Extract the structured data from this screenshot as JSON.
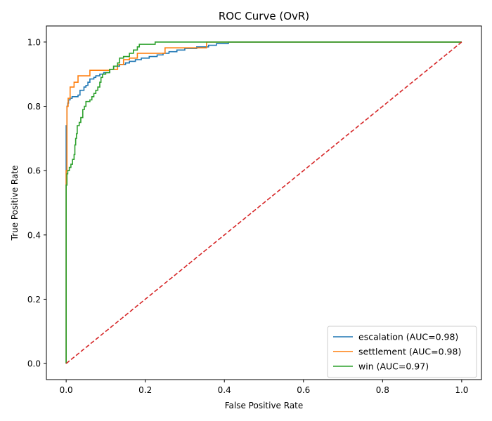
{
  "chart_data": {
    "type": "line",
    "title": "ROC Curve (OvR)",
    "xlabel": "False Positive Rate",
    "ylabel": "True Positive Rate",
    "xlim": [
      -0.05,
      1.05
    ],
    "ylim": [
      -0.05,
      1.05
    ],
    "xticks": [
      0.0,
      0.2,
      0.4,
      0.6,
      0.8,
      1.0
    ],
    "yticks": [
      0.0,
      0.2,
      0.4,
      0.6,
      0.8,
      1.0
    ],
    "grid": false,
    "legend_position": "lower-right",
    "series": [
      {
        "name": "escalation (AUC=0.98)",
        "color": "#1f77b4",
        "points": [
          [
            0,
            0
          ],
          [
            0,
            0.74
          ],
          [
            0.002,
            0.74
          ],
          [
            0.002,
            0.8
          ],
          [
            0.004,
            0.8
          ],
          [
            0.004,
            0.81
          ],
          [
            0.006,
            0.81
          ],
          [
            0.006,
            0.82
          ],
          [
            0.01,
            0.82
          ],
          [
            0.01,
            0.825
          ],
          [
            0.015,
            0.825
          ],
          [
            0.015,
            0.83
          ],
          [
            0.03,
            0.83
          ],
          [
            0.03,
            0.835
          ],
          [
            0.035,
            0.835
          ],
          [
            0.035,
            0.85
          ],
          [
            0.045,
            0.85
          ],
          [
            0.045,
            0.86
          ],
          [
            0.05,
            0.86
          ],
          [
            0.05,
            0.865
          ],
          [
            0.055,
            0.865
          ],
          [
            0.055,
            0.875
          ],
          [
            0.06,
            0.875
          ],
          [
            0.06,
            0.885
          ],
          [
            0.07,
            0.885
          ],
          [
            0.07,
            0.89
          ],
          [
            0.075,
            0.89
          ],
          [
            0.075,
            0.895
          ],
          [
            0.085,
            0.895
          ],
          [
            0.085,
            0.9
          ],
          [
            0.095,
            0.9
          ],
          [
            0.095,
            0.905
          ],
          [
            0.11,
            0.905
          ],
          [
            0.11,
            0.915
          ],
          [
            0.12,
            0.915
          ],
          [
            0.12,
            0.925
          ],
          [
            0.135,
            0.925
          ],
          [
            0.135,
            0.93
          ],
          [
            0.15,
            0.93
          ],
          [
            0.15,
            0.935
          ],
          [
            0.16,
            0.935
          ],
          [
            0.16,
            0.94
          ],
          [
            0.175,
            0.94
          ],
          [
            0.175,
            0.945
          ],
          [
            0.19,
            0.945
          ],
          [
            0.19,
            0.95
          ],
          [
            0.21,
            0.95
          ],
          [
            0.21,
            0.955
          ],
          [
            0.23,
            0.955
          ],
          [
            0.23,
            0.96
          ],
          [
            0.245,
            0.96
          ],
          [
            0.245,
            0.965
          ],
          [
            0.26,
            0.965
          ],
          [
            0.26,
            0.97
          ],
          [
            0.28,
            0.97
          ],
          [
            0.28,
            0.975
          ],
          [
            0.3,
            0.975
          ],
          [
            0.3,
            0.98
          ],
          [
            0.33,
            0.98
          ],
          [
            0.33,
            0.985
          ],
          [
            0.36,
            0.985
          ],
          [
            0.36,
            0.99
          ],
          [
            0.38,
            0.99
          ],
          [
            0.38,
            0.995
          ],
          [
            0.41,
            0.995
          ],
          [
            0.41,
            1.0
          ],
          [
            1.0,
            1.0
          ]
        ]
      },
      {
        "name": "settlement (AUC=0.98)",
        "color": "#ff7f0e",
        "points": [
          [
            0,
            0
          ],
          [
            0,
            0.6
          ],
          [
            0.002,
            0.6
          ],
          [
            0.002,
            0.8
          ],
          [
            0.005,
            0.8
          ],
          [
            0.005,
            0.825
          ],
          [
            0.01,
            0.825
          ],
          [
            0.01,
            0.86
          ],
          [
            0.02,
            0.86
          ],
          [
            0.02,
            0.875
          ],
          [
            0.03,
            0.875
          ],
          [
            0.03,
            0.895
          ],
          [
            0.06,
            0.895
          ],
          [
            0.06,
            0.912
          ],
          [
            0.11,
            0.912
          ],
          [
            0.11,
            0.915
          ],
          [
            0.13,
            0.915
          ],
          [
            0.13,
            0.93
          ],
          [
            0.145,
            0.93
          ],
          [
            0.145,
            0.945
          ],
          [
            0.16,
            0.945
          ],
          [
            0.16,
            0.95
          ],
          [
            0.18,
            0.95
          ],
          [
            0.18,
            0.965
          ],
          [
            0.25,
            0.965
          ],
          [
            0.25,
            0.982
          ],
          [
            0.355,
            0.982
          ],
          [
            0.355,
            1.0
          ],
          [
            1.0,
            1.0
          ]
        ]
      },
      {
        "name": "win (AUC=0.97)",
        "color": "#2ca02c",
        "points": [
          [
            0,
            0
          ],
          [
            0,
            0.555
          ],
          [
            0.002,
            0.555
          ],
          [
            0.002,
            0.59
          ],
          [
            0.004,
            0.59
          ],
          [
            0.004,
            0.6
          ],
          [
            0.008,
            0.6
          ],
          [
            0.008,
            0.61
          ],
          [
            0.012,
            0.61
          ],
          [
            0.012,
            0.62
          ],
          [
            0.016,
            0.62
          ],
          [
            0.016,
            0.635
          ],
          [
            0.02,
            0.635
          ],
          [
            0.02,
            0.65
          ],
          [
            0.022,
            0.65
          ],
          [
            0.022,
            0.68
          ],
          [
            0.024,
            0.68
          ],
          [
            0.024,
            0.7
          ],
          [
            0.026,
            0.7
          ],
          [
            0.026,
            0.715
          ],
          [
            0.028,
            0.715
          ],
          [
            0.028,
            0.74
          ],
          [
            0.033,
            0.74
          ],
          [
            0.033,
            0.75
          ],
          [
            0.037,
            0.75
          ],
          [
            0.037,
            0.765
          ],
          [
            0.042,
            0.765
          ],
          [
            0.042,
            0.79
          ],
          [
            0.046,
            0.79
          ],
          [
            0.046,
            0.8
          ],
          [
            0.05,
            0.8
          ],
          [
            0.05,
            0.815
          ],
          [
            0.06,
            0.815
          ],
          [
            0.06,
            0.82
          ],
          [
            0.065,
            0.82
          ],
          [
            0.065,
            0.83
          ],
          [
            0.07,
            0.83
          ],
          [
            0.07,
            0.84
          ],
          [
            0.075,
            0.84
          ],
          [
            0.075,
            0.85
          ],
          [
            0.08,
            0.85
          ],
          [
            0.08,
            0.86
          ],
          [
            0.085,
            0.86
          ],
          [
            0.085,
            0.875
          ],
          [
            0.088,
            0.875
          ],
          [
            0.088,
            0.89
          ],
          [
            0.092,
            0.89
          ],
          [
            0.092,
            0.9
          ],
          [
            0.1,
            0.9
          ],
          [
            0.1,
            0.905
          ],
          [
            0.11,
            0.905
          ],
          [
            0.11,
            0.915
          ],
          [
            0.12,
            0.915
          ],
          [
            0.12,
            0.925
          ],
          [
            0.13,
            0.925
          ],
          [
            0.13,
            0.935
          ],
          [
            0.135,
            0.935
          ],
          [
            0.135,
            0.95
          ],
          [
            0.145,
            0.95
          ],
          [
            0.145,
            0.955
          ],
          [
            0.16,
            0.955
          ],
          [
            0.16,
            0.965
          ],
          [
            0.17,
            0.965
          ],
          [
            0.17,
            0.975
          ],
          [
            0.18,
            0.975
          ],
          [
            0.18,
            0.985
          ],
          [
            0.185,
            0.985
          ],
          [
            0.185,
            0.993
          ],
          [
            0.225,
            0.993
          ],
          [
            0.225,
            1.0
          ],
          [
            1.0,
            1.0
          ]
        ]
      },
      {
        "name": "",
        "color": "#d62728",
        "dashed": true,
        "points": [
          [
            0,
            0
          ],
          [
            1,
            1
          ]
        ]
      }
    ]
  }
}
